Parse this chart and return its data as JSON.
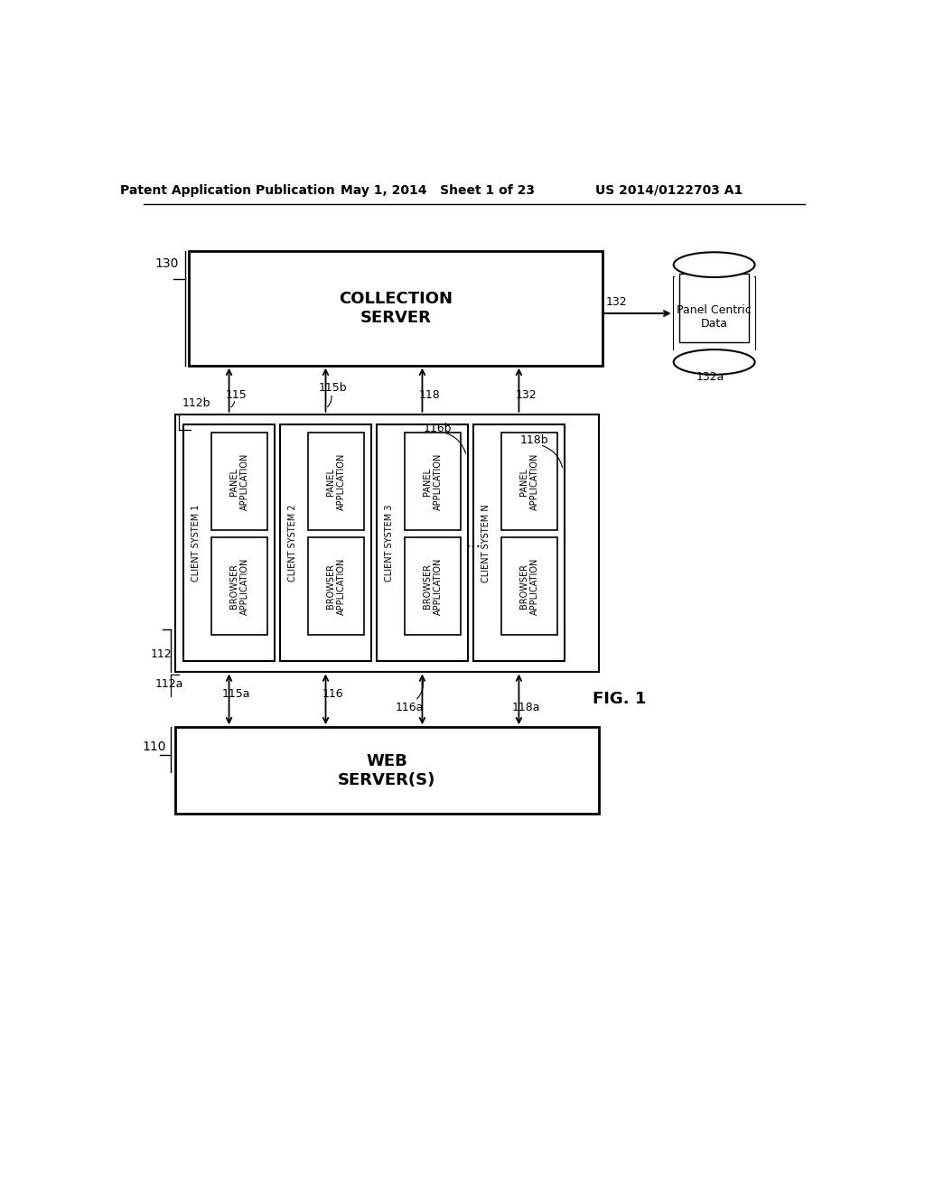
{
  "bg_color": "#ffffff",
  "header_left": "Patent Application Publication",
  "header_center": "May 1, 2014   Sheet 1 of 23",
  "header_right": "US 2014/0122703 A1",
  "fig_label": "FIG. 1",
  "collection_server_label": "COLLECTION\nSERVER",
  "collection_server_ref": "130",
  "web_server_label": "WEB\nSERVER(S)",
  "web_server_ref": "110",
  "database_label": "Panel Centric\nData",
  "database_ref": "132a",
  "database_arrow_ref": "132",
  "client_systems": [
    {
      "name": "CLIENT SYSTEM 1",
      "browser": "BROWSER\nAPPLICATION",
      "panel": "PANEL\nAPPLICATION"
    },
    {
      "name": "CLIENT SYSTEM 2",
      "browser": "BROWSER\nAPPLICATION",
      "panel": "PANEL\nAPPLICATION"
    },
    {
      "name": "CLIENT SYSTEM 3",
      "browser": "BROWSER\nAPPLICATION",
      "panel": "PANEL\nAPPLICATION"
    },
    {
      "name": "CLIENT SYSTEM N",
      "browser": "BROWSER\nAPPLICATION",
      "panel": "PANEL\nAPPLICATION"
    }
  ],
  "outer_box_ref": "112",
  "dots": "..."
}
